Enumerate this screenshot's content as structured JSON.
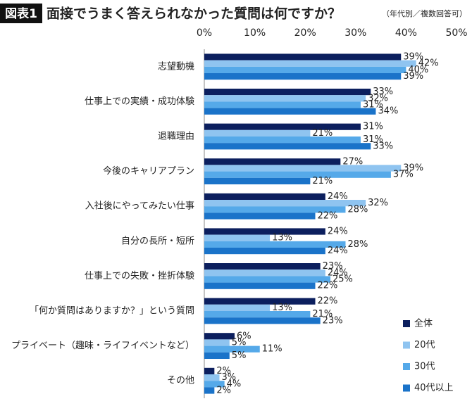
{
  "chart_data": {
    "type": "bar",
    "orientation": "horizontal",
    "badge": "図表1",
    "title": "面接でうまく答えられなかった質問は何ですか？",
    "subtitle": "（年代別／複数回答可）",
    "categories": [
      "志望動機",
      "仕事上での実績・成功体験",
      "退職理由",
      "今後のキャリアプラン",
      "入社後にやってみたい仕事",
      "自分の長所・短所",
      "仕事上での失敗・挫折体験",
      "「何か質問はありますか？」という質問",
      "プライベート（趣味・ライフイベントなど）",
      "その他"
    ],
    "series": [
      {
        "name": "全体",
        "color": "#0c1f5e",
        "values": [
          39,
          33,
          31,
          27,
          24,
          24,
          23,
          22,
          6,
          2
        ],
        "value_labels": [
          "39%",
          "33%",
          "31%",
          "27%",
          "24%",
          "24%",
          "23%",
          "22%",
          "6%",
          "2%"
        ]
      },
      {
        "name": "20代",
        "color": "#8fc4f0",
        "values": [
          42,
          32,
          21,
          39,
          32,
          13,
          24,
          13,
          5,
          3
        ],
        "value_labels": [
          "42%",
          "32%",
          "21%",
          "39%",
          "32%",
          "13%",
          "24%",
          "13%",
          "5%",
          "3%"
        ]
      },
      {
        "name": "30代",
        "color": "#55a9e9",
        "values": [
          40,
          31,
          31,
          37,
          28,
          28,
          25,
          21,
          11,
          4
        ],
        "value_labels": [
          "40%",
          "31%",
          "31%",
          "37%",
          "28%",
          "28%",
          "25%",
          "21%",
          "11%",
          "4%"
        ]
      },
      {
        "name": "40代以上",
        "color": "#1a73c9",
        "values": [
          39,
          34,
          33,
          21,
          22,
          24,
          22,
          23,
          5,
          2
        ],
        "value_labels": [
          "39%",
          "34%",
          "33%",
          "21%",
          "22%",
          "24%",
          "22%",
          "23%",
          "5%",
          "2%"
        ]
      }
    ],
    "xlim": [
      0,
      50
    ],
    "xticks": [
      {
        "value": 0,
        "label": "0%"
      },
      {
        "value": 10,
        "label": "10%"
      },
      {
        "value": 20,
        "label": "20%"
      },
      {
        "value": 30,
        "label": "30%"
      },
      {
        "value": 40,
        "label": "40%"
      },
      {
        "value": 50,
        "label": "50%"
      }
    ],
    "grid": false,
    "legend_position": "lower right"
  }
}
